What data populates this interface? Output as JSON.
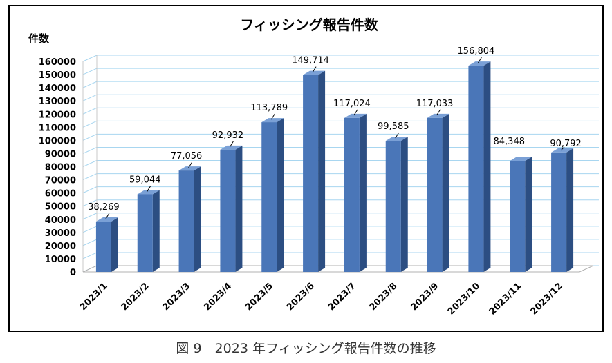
{
  "chart_data": {
    "type": "bar",
    "title": "フィッシング報告件数",
    "ylabel": "件数",
    "xlabel": "",
    "categories": [
      "2023/1",
      "2023/2",
      "2023/3",
      "2023/4",
      "2023/5",
      "2023/6",
      "2023/7",
      "2023/8",
      "2023/9",
      "2023/10",
      "2023/11",
      "2023/12"
    ],
    "values": [
      38269,
      59044,
      77056,
      92932,
      113789,
      149714,
      117024,
      99585,
      117033,
      156804,
      84348,
      90792
    ],
    "data_labels": [
      "38,269",
      "59,044",
      "77,056",
      "92,932",
      "113,789",
      "149,714",
      "117,024",
      "99,585",
      "117,033",
      "156,804",
      "",
      ""
    ],
    "side_labels": [
      "",
      "",
      "",
      "",
      "",
      "",
      "",
      "",
      "",
      "",
      "84,348",
      "90,792"
    ],
    "ylim": [
      0,
      160000
    ],
    "ytick_step": 10000,
    "grid": true,
    "style": "3d",
    "colors": {
      "bar_front": "#4a76b8",
      "bar_side": "#2c4e82",
      "bar_top": "#7aa0d6",
      "grid": "#a8d6f0"
    }
  },
  "caption": "図 9　2023 年フィッシング報告件数の推移"
}
